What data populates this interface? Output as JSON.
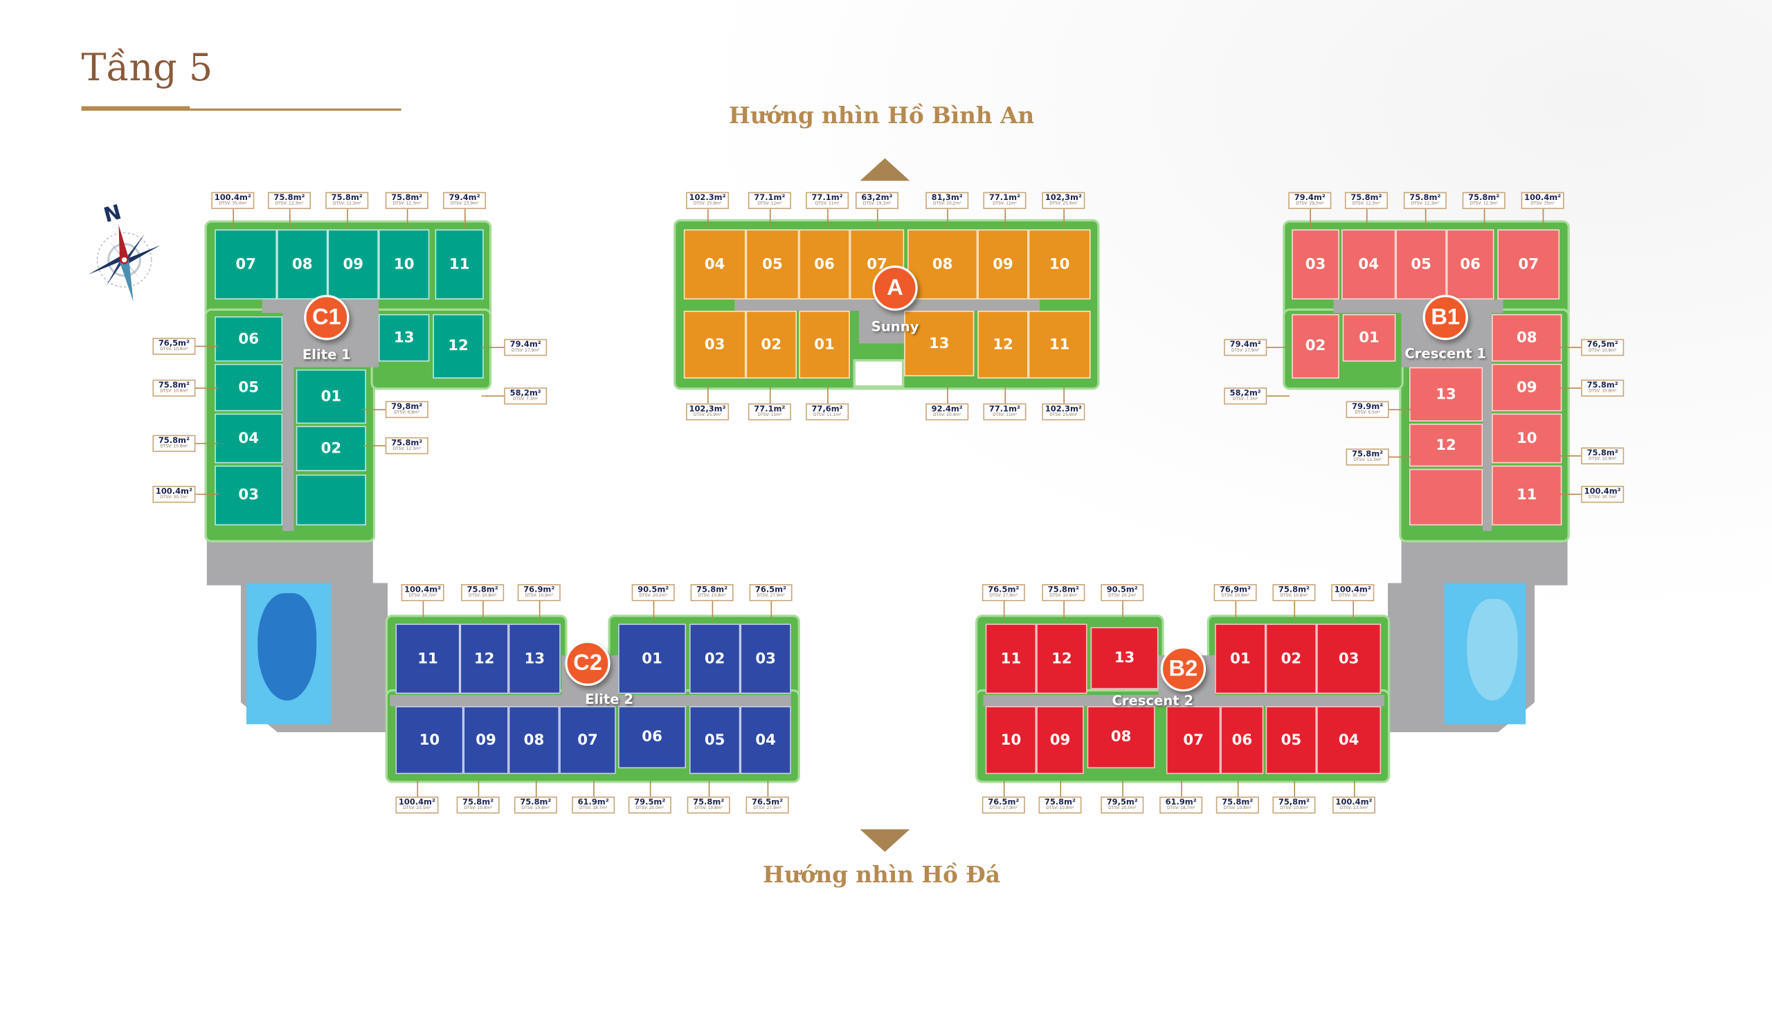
{
  "page": {
    "title": "Tầng 5",
    "view_top": "Hướng nhìn Hồ Bình An",
    "view_bottom": "Hướng nhìn Hồ Đá",
    "compass_label": "N"
  },
  "dtsv_prefix": "DTSV:",
  "colors": {
    "frame": "#5cb84a",
    "corridor": "#a9a9ab",
    "badge": "#ee5a2a",
    "title": "#8b5a3a",
    "accent": "#b58a50"
  },
  "blocks": [
    {
      "id": "C1",
      "name": "Elite 1",
      "color": "#00a38a",
      "units": [
        "07",
        "08",
        "09",
        "10",
        "11",
        "06",
        "13",
        "12",
        "05",
        "04",
        "03",
        "01",
        "02"
      ]
    },
    {
      "id": "A",
      "name": "Sunny",
      "color": "#e8931f",
      "units": [
        "04",
        "05",
        "06",
        "07",
        "08",
        "09",
        "10",
        "03",
        "02",
        "01",
        "13",
        "12",
        "11"
      ]
    },
    {
      "id": "B1",
      "name": "Crescent 1",
      "color": "#f06a6a",
      "units": [
        "03",
        "04",
        "05",
        "06",
        "07",
        "02",
        "01",
        "08",
        "13",
        "09",
        "12",
        "10",
        "11"
      ]
    },
    {
      "id": "C2",
      "name": "Elite 2",
      "color": "#2f4aa6",
      "units": [
        "11",
        "12",
        "13",
        "01",
        "02",
        "03",
        "10",
        "09",
        "08",
        "07",
        "06",
        "05",
        "04"
      ]
    },
    {
      "id": "B2",
      "name": "Crescent 2",
      "color": "#e5202e",
      "units": [
        "11",
        "12",
        "13",
        "01",
        "02",
        "03",
        "10",
        "09",
        "08",
        "07",
        "06",
        "05",
        "04"
      ]
    }
  ],
  "area_labels": {
    "C1": [
      {
        "area": "100.4m²",
        "dtsv": "35,0m²"
      },
      {
        "area": "75.8m²",
        "dtsv": "12.3m²"
      },
      {
        "area": "75.8m²",
        "dtsv": "12.3m²"
      },
      {
        "area": "75.8m²",
        "dtsv": "12.3m²"
      },
      {
        "area": "79.4m²",
        "dtsv": "23.9m²"
      },
      {
        "area": "76,5m²",
        "dtsv": "10,8m²"
      },
      {
        "area": "75.8m²",
        "dtsv": "10.8m²"
      },
      {
        "area": "75.8m²",
        "dtsv": "10.8m²"
      },
      {
        "area": "100.4m²",
        "dtsv": "30.7m²"
      },
      {
        "area": "79.4m²",
        "dtsv": "27,9m²"
      },
      {
        "area": "58,2m²",
        "dtsv": "7.3m²"
      },
      {
        "area": "79,8m²",
        "dtsv": "6.8m²"
      },
      {
        "area": "75.8m²",
        "dtsv": "12.3m²"
      }
    ],
    "A": [
      {
        "area": "102.3m²",
        "dtsv": "25,9m²"
      },
      {
        "area": "77.1m²",
        "dtsv": "11m²"
      },
      {
        "area": "77.1m²",
        "dtsv": "11m²"
      },
      {
        "area": "63,2m²",
        "dtsv": "19,1m²"
      },
      {
        "area": "81,3m²",
        "dtsv": "20,2m²"
      },
      {
        "area": "77.1m²",
        "dtsv": "11m²"
      },
      {
        "area": "102,3m²",
        "dtsv": "25,9m²"
      },
      {
        "area": "102,3m²",
        "dtsv": "25,9m²"
      },
      {
        "area": "77.1m²",
        "dtsv": "11m²"
      },
      {
        "area": "77,6m²",
        "dtsv": "11,1m²"
      },
      {
        "area": "92.4m²",
        "dtsv": "20.4m²"
      },
      {
        "area": "77.1m²",
        "dtsv": "11m²"
      },
      {
        "area": "102.3m²",
        "dtsv": "25,9m²"
      }
    ],
    "B1": [
      {
        "area": "79.4m²",
        "dtsv": "29,3m²"
      },
      {
        "area": "75.8m²",
        "dtsv": "12,3m²"
      },
      {
        "area": "75.8m²",
        "dtsv": "12.3m²"
      },
      {
        "area": "75.8m²",
        "dtsv": "12.3m²"
      },
      {
        "area": "100.4m²",
        "dtsv": "35m²"
      },
      {
        "area": "79.4m²",
        "dtsv": "27,9m²"
      },
      {
        "area": "58,2m²",
        "dtsv": "7.3m²"
      },
      {
        "area": "79.9m²",
        "dtsv": "6.5m²"
      },
      {
        "area": "75.8m²",
        "dtsv": "12.3m²"
      },
      {
        "area": "76,5m²",
        "dtsv": "10,8m²"
      },
      {
        "area": "75.8m²",
        "dtsv": "10.8m²"
      },
      {
        "area": "75.8m²",
        "dtsv": "10.8m²"
      },
      {
        "area": "100.4m²",
        "dtsv": "30.7m²"
      }
    ],
    "C2": [
      {
        "area": "100.4m²",
        "dtsv": "30.7m²"
      },
      {
        "area": "75.8m²",
        "dtsv": "10.8m²"
      },
      {
        "area": "76.9m²",
        "dtsv": "10.9m²"
      },
      {
        "area": "90.5m²",
        "dtsv": "20.2m²"
      },
      {
        "area": "75.8m²",
        "dtsv": "10.8m²"
      },
      {
        "area": "76.5m²",
        "dtsv": "27.9m²"
      },
      {
        "area": "100.4m²",
        "dtsv": "23.5m²"
      },
      {
        "area": "75.8m²",
        "dtsv": "10.8m²"
      },
      {
        "area": "75.8m²",
        "dtsv": "10.8m²"
      },
      {
        "area": "61.9m²",
        "dtsv": "18.7m²"
      },
      {
        "area": "79.5m²",
        "dtsv": "20.0m²"
      },
      {
        "area": "75.8m²",
        "dtsv": "10.8m²"
      },
      {
        "area": "76.5m²",
        "dtsv": "27.9m²"
      }
    ],
    "B2": [
      {
        "area": "76.5m²",
        "dtsv": "27,9m²"
      },
      {
        "area": "75.8m²",
        "dtsv": "10.8m²"
      },
      {
        "area": "90.5m²",
        "dtsv": "20.2m²"
      },
      {
        "area": "76,9m²",
        "dtsv": "10.9m²"
      },
      {
        "area": "75.8m²",
        "dtsv": "10.8m²"
      },
      {
        "area": "100.4m²",
        "dtsv": "30.7m²"
      },
      {
        "area": "76.5m²",
        "dtsv": "27,9m²"
      },
      {
        "area": "75.8m²",
        "dtsv": "10.8m²"
      },
      {
        "area": "79,5m²",
        "dtsv": "20,0m²"
      },
      {
        "area": "61.9m²",
        "dtsv": "18,7m²"
      },
      {
        "area": "75.8m²",
        "dtsv": "10.8m²"
      },
      {
        "area": "75,8m²",
        "dtsv": "10.8m²"
      },
      {
        "area": "100.4m²",
        "dtsv": "23.5m²"
      }
    ]
  }
}
